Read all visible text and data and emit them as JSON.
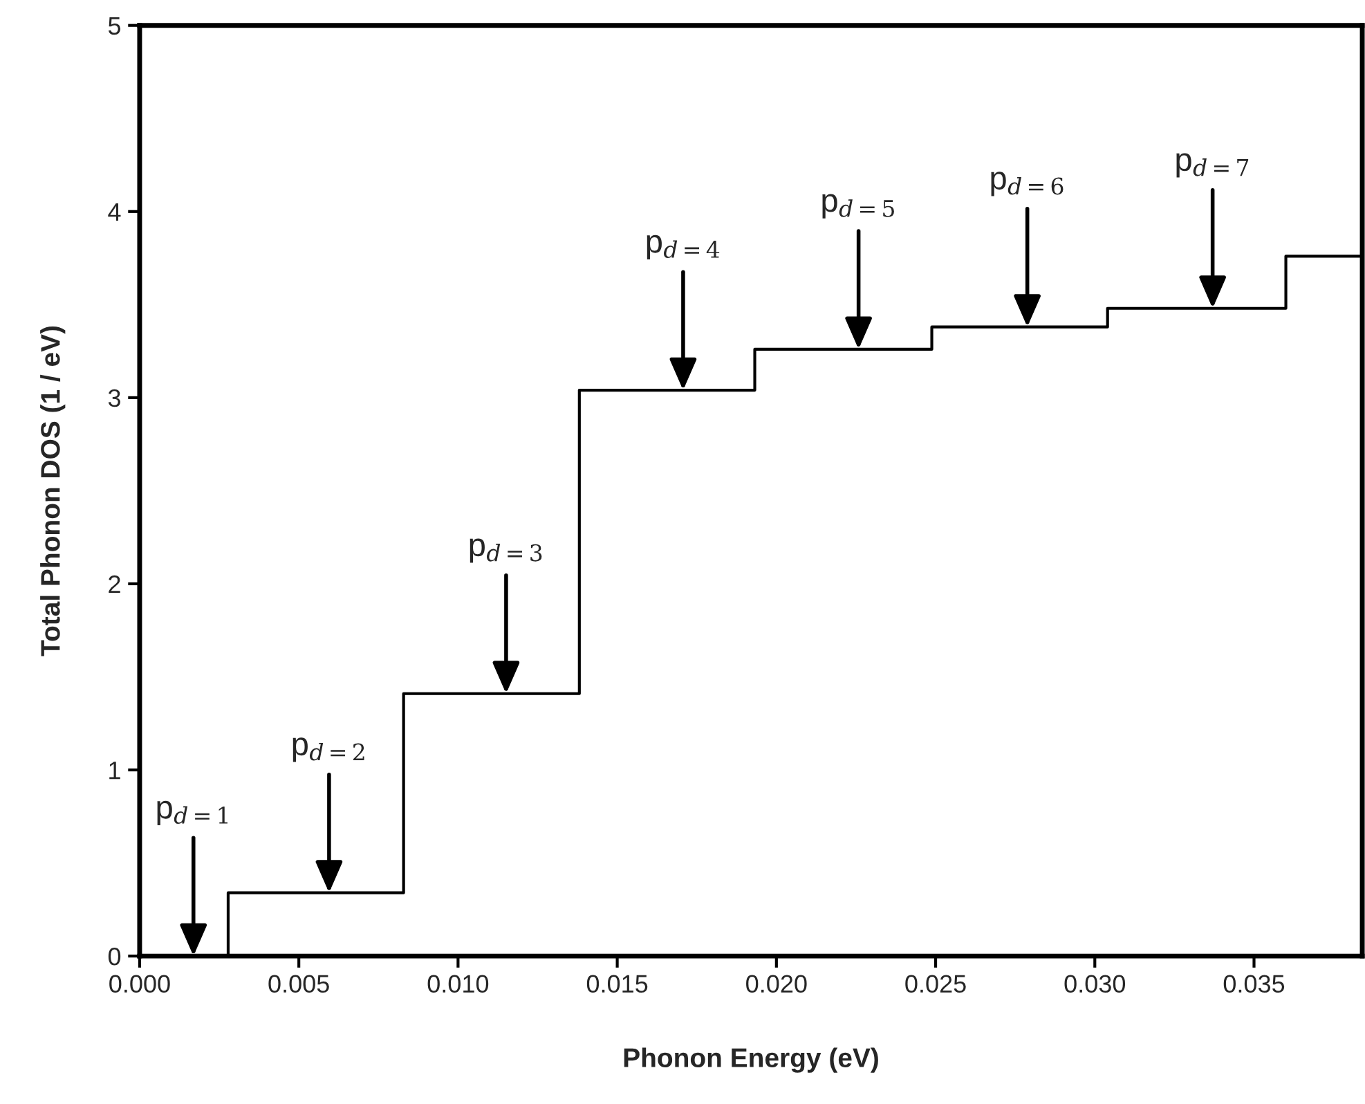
{
  "chart_data": {
    "type": "step",
    "xlabel": "Phonon Energy (eV)",
    "ylabel": "Total Phonon DOS (1 / eV)",
    "x": [
      0,
      0.00278,
      0.00829,
      0.01381,
      0.01932,
      0.02488,
      0.0304,
      0.036,
      0.0384
    ],
    "series": [
      {
        "color": "#000000",
        "values": [
          0,
          0.34,
          1.41,
          3.04,
          3.26,
          3.38,
          3.48,
          3.76,
          3.76
        ]
      }
    ],
    "xlim": [
      0,
      0.0384
    ],
    "xticks": [
      {
        "value": 0,
        "label": "0.000"
      },
      0.005,
      {
        "value": 0.01,
        "label": "0.010"
      },
      0.015,
      {
        "value": 0.02,
        "label": "0.020"
      },
      0.025,
      {
        "value": 0.03,
        "label": "0.030"
      },
      0.035
    ],
    "ylim": [
      0,
      5
    ],
    "yticks": [
      0,
      1,
      2,
      3,
      4,
      5
    ],
    "grid": false,
    "marker": "none",
    "line_style": "solid",
    "annotations": [
      {
        "text": "p$_{d=1}$",
        "x": 0.00169,
        "y": 0
      },
      {
        "text": "p$_{d=2}$",
        "x": 0.00595,
        "y": 0.34
      },
      {
        "text": "p$_{d=3}$",
        "x": 0.01151,
        "y": 1.41
      },
      {
        "text": "p$_{d=4}$",
        "x": 0.01707,
        "y": 3.04
      },
      {
        "text": "p$_{d=5}$",
        "x": 0.02258,
        "y": 3.26
      },
      {
        "text": "p$_{d=6}$",
        "x": 0.02788,
        "y": 3.38
      },
      {
        "text": "p$_{d=7}$",
        "x": 0.0337,
        "y": 3.48
      }
    ]
  }
}
